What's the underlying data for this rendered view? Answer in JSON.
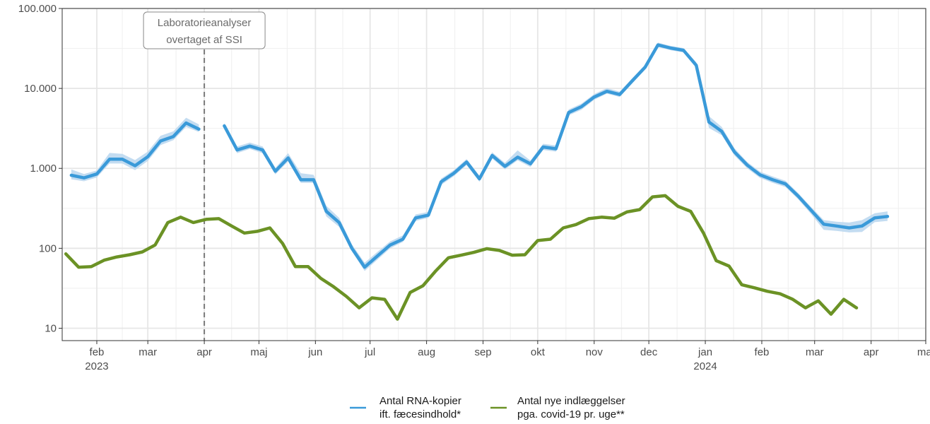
{
  "chart_data": {
    "type": "line",
    "y_scale": "log",
    "ylim": [
      7,
      100000
    ],
    "xlim": [
      "2023-01-13",
      "2024-05-01"
    ],
    "grid": true,
    "legend_position": "bottom",
    "y_ticks": [
      {
        "value": 10,
        "label": "10"
      },
      {
        "value": 100,
        "label": "100"
      },
      {
        "value": 1000,
        "label": "1.000"
      },
      {
        "value": 10000,
        "label": "10.000"
      },
      {
        "value": 100000,
        "label": "100.000"
      }
    ],
    "x_ticks": [
      {
        "date": "2023-02-01",
        "label": "feb",
        "sublabel": "2023"
      },
      {
        "date": "2023-03-01",
        "label": "mar",
        "sublabel": ""
      },
      {
        "date": "2023-04-01",
        "label": "apr",
        "sublabel": ""
      },
      {
        "date": "2023-05-01",
        "label": "maj",
        "sublabel": ""
      },
      {
        "date": "2023-06-01",
        "label": "jun",
        "sublabel": ""
      },
      {
        "date": "2023-07-01",
        "label": "jul",
        "sublabel": ""
      },
      {
        "date": "2023-08-01",
        "label": "aug",
        "sublabel": ""
      },
      {
        "date": "2023-09-01",
        "label": "sep",
        "sublabel": ""
      },
      {
        "date": "2023-10-01",
        "label": "okt",
        "sublabel": ""
      },
      {
        "date": "2023-11-01",
        "label": "nov",
        "sublabel": ""
      },
      {
        "date": "2023-12-01",
        "label": "dec",
        "sublabel": ""
      },
      {
        "date": "2024-01-01",
        "label": "jan",
        "sublabel": "2024"
      },
      {
        "date": "2024-02-01",
        "label": "feb",
        "sublabel": ""
      },
      {
        "date": "2024-03-01",
        "label": "mar",
        "sublabel": ""
      },
      {
        "date": "2024-04-01",
        "label": "apr",
        "sublabel": ""
      },
      {
        "date": "2024-05-01",
        "label": "maj",
        "sublabel": ""
      }
    ],
    "annotation": {
      "date": "2023-04-01",
      "lines": [
        "Laboratorieanalyser",
        "overtaget af SSI"
      ]
    },
    "series": [
      {
        "name_lines": [
          "Antal RNA-kopier",
          "ift. fæcesindhold*"
        ],
        "color": "#3a9ad9",
        "band_color": "#bcd8ef",
        "band": true,
        "x": [
          "2023-01-18",
          "2023-01-25",
          "2023-02-01",
          "2023-02-08",
          "2023-02-15",
          "2023-02-22",
          "2023-03-01",
          "2023-03-08",
          "2023-03-15",
          "2023-03-22",
          "2023-03-29",
          "2023-04-05",
          "2023-04-12",
          "2023-04-19",
          "2023-04-26",
          "2023-05-03",
          "2023-05-10",
          "2023-05-17",
          "2023-05-24",
          "2023-05-31",
          "2023-06-07",
          "2023-06-14",
          "2023-06-21",
          "2023-06-28",
          "2023-07-05",
          "2023-07-12",
          "2023-07-19",
          "2023-07-26",
          "2023-08-02",
          "2023-08-09",
          "2023-08-16",
          "2023-08-23",
          "2023-08-30",
          "2023-09-06",
          "2023-09-13",
          "2023-09-20",
          "2023-09-27",
          "2023-10-04",
          "2023-10-11",
          "2023-10-18",
          "2023-10-25",
          "2023-11-01",
          "2023-11-08",
          "2023-11-15",
          "2023-11-22",
          "2023-11-29",
          "2023-12-06",
          "2023-12-13",
          "2023-12-20",
          "2023-12-27",
          "2024-01-03",
          "2024-01-10",
          "2024-01-17",
          "2024-01-24",
          "2024-01-31",
          "2024-02-07",
          "2024-02-14",
          "2024-02-21",
          "2024-02-28",
          "2024-03-06",
          "2024-03-13",
          "2024-03-20",
          "2024-03-27",
          "2024-04-03",
          "2024-04-10"
        ],
        "values": [
          820,
          760,
          850,
          1300,
          1300,
          1080,
          1400,
          2200,
          2500,
          3700,
          3100,
          null,
          3400,
          1700,
          1900,
          1700,
          920,
          1350,
          720,
          720,
          290,
          210,
          100,
          58,
          80,
          110,
          130,
          240,
          260,
          680,
          870,
          1200,
          740,
          1450,
          1060,
          1380,
          1140,
          1850,
          1760,
          5000,
          5900,
          7800,
          9200,
          8400,
          12500,
          18500,
          35000,
          32000,
          30000,
          19500,
          3800,
          2900,
          1600,
          1100,
          830,
          720,
          640,
          450,
          300,
          200,
          190,
          180,
          190,
          240,
          250
        ],
        "lower": [
          730,
          690,
          770,
          1150,
          1150,
          950,
          1240,
          1950,
          2250,
          3300,
          2850,
          null,
          3150,
          1550,
          1750,
          1550,
          840,
          1220,
          660,
          660,
          250,
          185,
          92,
          52,
          72,
          100,
          120,
          220,
          240,
          620,
          800,
          1100,
          680,
          1330,
          970,
          1260,
          1040,
          1700,
          1620,
          4600,
          5400,
          7200,
          8600,
          7800,
          11600,
          17300,
          33000,
          30000,
          28200,
          18000,
          3200,
          2600,
          1450,
          1000,
          760,
          660,
          585,
          410,
          270,
          170,
          165,
          158,
          160,
          212,
          220
        ],
        "upper": [
          970,
          850,
          940,
          1560,
          1520,
          1270,
          1620,
          2560,
          2900,
          4300,
          3550,
          null,
          3700,
          1880,
          2100,
          1880,
          1010,
          1550,
          870,
          830,
          340,
          240,
          112,
          66,
          90,
          122,
          145,
          265,
          285,
          745,
          950,
          1310,
          810,
          1590,
          1170,
          1680,
          1250,
          2030,
          1930,
          5450,
          6450,
          8500,
          10100,
          9100,
          13500,
          19800,
          37500,
          34000,
          32000,
          21200,
          4500,
          3300,
          1780,
          1200,
          910,
          790,
          700,
          490,
          330,
          225,
          215,
          210,
          225,
          275,
          290
        ]
      },
      {
        "name_lines": [
          "Antal nye indlæggelser",
          "pga. covid-19 pr. uge**"
        ],
        "color": "#6b9225",
        "band": false,
        "x": [
          "2023-01-15",
          "2023-01-22",
          "2023-01-29",
          "2023-02-05",
          "2023-02-12",
          "2023-02-19",
          "2023-02-26",
          "2023-03-05",
          "2023-03-12",
          "2023-03-19",
          "2023-03-26",
          "2023-04-02",
          "2023-04-09",
          "2023-04-16",
          "2023-04-23",
          "2023-04-30",
          "2023-05-07",
          "2023-05-14",
          "2023-05-21",
          "2023-05-28",
          "2023-06-04",
          "2023-06-11",
          "2023-06-18",
          "2023-06-25",
          "2023-07-02",
          "2023-07-09",
          "2023-07-16",
          "2023-07-23",
          "2023-07-30",
          "2023-08-06",
          "2023-08-13",
          "2023-08-20",
          "2023-08-27",
          "2023-09-03",
          "2023-09-10",
          "2023-09-17",
          "2023-09-24",
          "2023-10-01",
          "2023-10-08",
          "2023-10-15",
          "2023-10-22",
          "2023-10-29",
          "2023-11-05",
          "2023-11-12",
          "2023-11-19",
          "2023-11-26",
          "2023-12-03",
          "2023-12-10",
          "2023-12-17",
          "2023-12-24",
          "2023-12-31",
          "2024-01-07",
          "2024-01-14",
          "2024-01-21",
          "2024-01-28",
          "2024-02-04",
          "2024-02-11",
          "2024-02-18",
          "2024-02-25",
          "2024-03-03",
          "2024-03-10",
          "2024-03-17",
          "2024-03-24",
          "2024-03-31"
        ],
        "values": [
          85,
          58,
          59,
          71,
          78,
          83,
          90,
          110,
          210,
          245,
          210,
          230,
          235,
          190,
          155,
          163,
          180,
          115,
          59,
          59,
          42,
          33,
          25,
          18,
          24,
          23,
          13,
          28,
          34,
          52,
          76,
          82,
          89,
          99,
          94,
          82,
          83,
          125,
          130,
          180,
          198,
          235,
          245,
          238,
          285,
          305,
          440,
          455,
          335,
          290,
          155,
          70,
          60,
          35,
          32,
          29,
          27,
          23,
          18,
          22,
          15,
          23,
          18,
          null
        ]
      }
    ]
  }
}
